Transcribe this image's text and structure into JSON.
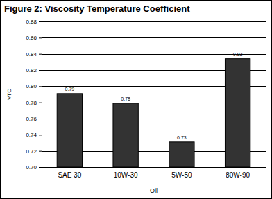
{
  "chart_data": {
    "type": "bar",
    "title": "Figure 2:  Viscosity Temperature Coefficient",
    "x_label": "Oil",
    "y_label": "VTC",
    "categories": [
      "SAE 30",
      "10W-30",
      "5W-50",
      "80W-90"
    ],
    "values": [
      0.791,
      0.779,
      0.731,
      0.834
    ],
    "value_labels": [
      "0.79",
      "0.78",
      "0.73",
      "0.83"
    ],
    "data_labels": true,
    "color": "#333333",
    "ylim": [
      0.7,
      0.88
    ],
    "yticks": [
      {
        "value": 0.7,
        "label": "0.70"
      },
      0.72,
      0.74,
      0.76,
      0.78,
      {
        "value": 0.8,
        "label": "0.80"
      },
      0.82,
      0.84,
      0.86,
      0.88
    ],
    "grid": true
  }
}
